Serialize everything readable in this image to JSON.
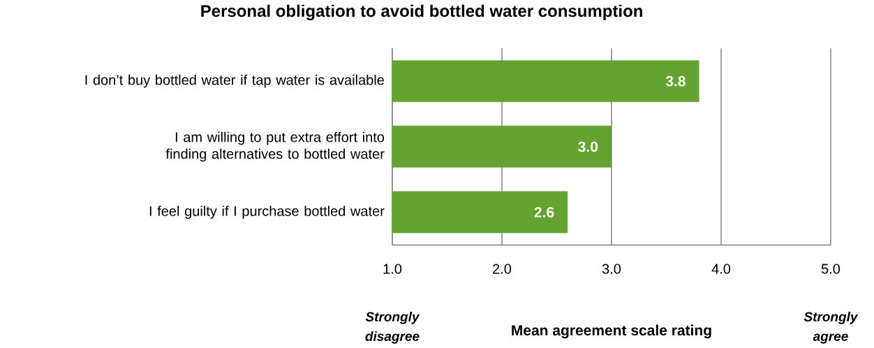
{
  "chart_data": {
    "type": "bar",
    "orientation": "horizontal",
    "title": "Personal obligation to avoid bottled water consumption",
    "categories": [
      "I don’t buy bottled water if tap water is available",
      "I am willing to put extra effort into finding alternatives to bottled water",
      "I feel guilty if I purchase bottled water"
    ],
    "values": [
      3.8,
      3.0,
      2.6
    ],
    "color": "#65a330",
    "value_labels": [
      "3.8",
      "3.0",
      "2.6"
    ],
    "xlabel": "Mean agreement scale rating",
    "xlim": [
      1,
      5
    ],
    "xticks": [
      {
        "value": 1,
        "label": "1.0"
      },
      {
        "value": 2,
        "label": "2.0"
      },
      {
        "value": 3,
        "label": "3.0"
      },
      {
        "value": 4,
        "label": "4.0"
      },
      {
        "value": 5,
        "label": "5.0"
      }
    ],
    "grid": "x",
    "annotations": [
      "**Strongly disagree**",
      "**Strongly agree**"
    ]
  }
}
